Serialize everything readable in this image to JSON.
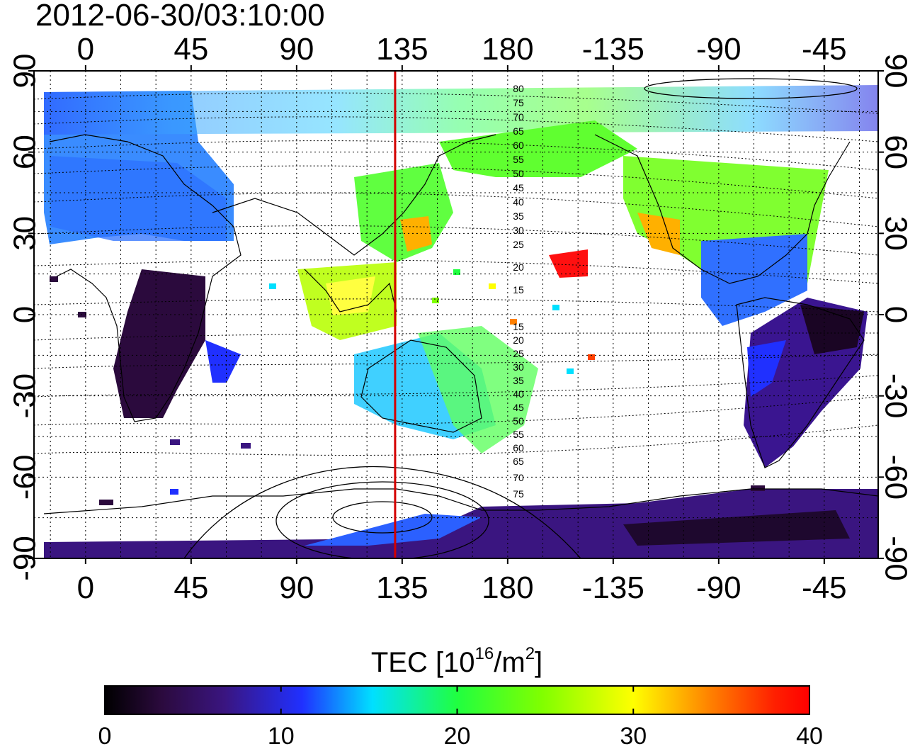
{
  "timestamp": "2012-06-30/03:10:00",
  "colors": {
    "marker_line": "#d40000",
    "land_outline": "#000000",
    "grid": "#000000",
    "colormap": [
      "#000000",
      "#2b0a3d",
      "#3a1580",
      "#2030ff",
      "#00e0ff",
      "#20ff40",
      "#80ff00",
      "#ffff00",
      "#ff8000",
      "#ff2000",
      "#ff0000"
    ]
  },
  "map": {
    "x_axis_top_ticks": [
      "0",
      "45",
      "90",
      "135",
      "180",
      "-135",
      "-90",
      "-45"
    ],
    "x_axis_bottom_ticks": [
      "0",
      "45",
      "90",
      "135",
      "180",
      "-135",
      "-90",
      "-45"
    ],
    "y_axis_left_ticks": [
      "90",
      "60",
      "30",
      "0",
      "-30",
      "-60",
      "-90"
    ],
    "y_axis_right_ticks": [
      "90",
      "60",
      "30",
      "0",
      "-30",
      "-60",
      "-90"
    ],
    "marker_longitude": 132,
    "contour_labels_north": [
      "80",
      "75",
      "70",
      "65",
      "60",
      "55",
      "50",
      "45",
      "40",
      "35",
      "30",
      "25",
      "20",
      "15"
    ],
    "contour_labels_south": [
      "15",
      "20",
      "25",
      "30",
      "35",
      "40",
      "45",
      "50",
      "55",
      "60",
      "65",
      "70",
      "75"
    ]
  },
  "colorbar": {
    "title_prefix": "TEC  [10",
    "title_sup1": "16",
    "title_mid": "/m",
    "title_sup2": "2",
    "title_suffix": "]",
    "min": 0,
    "max": 40,
    "ticks": [
      "0",
      "10",
      "20",
      "30",
      "40"
    ]
  }
}
